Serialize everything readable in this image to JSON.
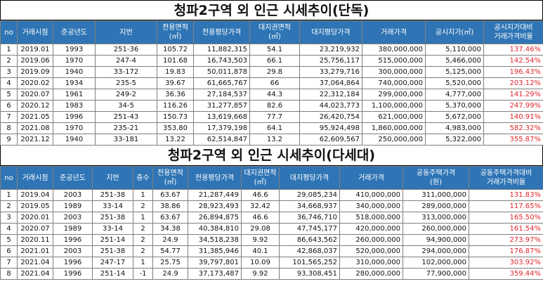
{
  "section1": {
    "title": "청파2구역 외 인근 시세추이(단독)",
    "headers": [
      "no",
      "거래시점",
      "준공년도",
      "지번",
      "전용면적\n(㎡)",
      "전용평당가격",
      "대지권면적\n(㎡)",
      "대지평당가격",
      "거래가격",
      "공시지가(㎡)",
      "공시지가대비\n거래가격비율"
    ],
    "rows": [
      [
        "1",
        "2019.01",
        "1993",
        "251-36",
        "105.72",
        "11,882,315",
        "54.1",
        "23,219,932",
        "380,000,000",
        "5,110,000",
        "137.46%"
      ],
      [
        "2",
        "2019.06",
        "1970",
        "247-4",
        "101.68",
        "16,743,503",
        "66.1",
        "25,756,117",
        "515,000,000",
        "5,466,000",
        "142.54%"
      ],
      [
        "3",
        "2019.09",
        "1940",
        "33-172",
        "19.83",
        "50,011,878",
        "29.8",
        "33,279,716",
        "300,000,000",
        "5,125,000",
        "196.43%"
      ],
      [
        "4",
        "2020.02",
        "1934",
        "235-5",
        "39.67",
        "61,665,767",
        "66",
        "37,064,864",
        "740,000,000",
        "5,520,000",
        "203.12%"
      ],
      [
        "5",
        "2020.07",
        "1961",
        "249-2",
        "36.36",
        "27,184,537",
        "44.3",
        "22,312,184",
        "299,000,000",
        "4,777,000",
        "141.29%"
      ],
      [
        "6",
        "2020.12",
        "1983",
        "34-5",
        "116.26",
        "31,277,857",
        "82.6",
        "44,023,773",
        "1,100,000,000",
        "5,370,000",
        "247.99%"
      ],
      [
        "7",
        "2021.05",
        "1996",
        "251-43",
        "150.73",
        "13,619,668",
        "77.7",
        "26,420,754",
        "621,000,000",
        "5,672,000",
        "140.91%"
      ],
      [
        "8",
        "2021.08",
        "1970",
        "235-21",
        "353.80",
        "17,379,198",
        "64.1",
        "95,924,498",
        "1,860,000,000",
        "4,983,000",
        "582.32%"
      ],
      [
        "9",
        "2021.12",
        "1940",
        "33-181",
        "13.22",
        "62,514,847",
        "13.2",
        "62,609,567",
        "250,000,000",
        "5,322,000",
        "355.87%"
      ]
    ]
  },
  "section2": {
    "title": "청파2구역 외 인근 시세추이(다세대)",
    "headers": [
      "no",
      "거래시점",
      "준공년도",
      "지번",
      "층수",
      "전용면적\n(㎡)",
      "전용평당가격",
      "대지권면적\n(㎡)",
      "대지평당가격",
      "거래가격",
      "공동주택가격\n(원)",
      "공동주택가격대비\n거래가격비율"
    ],
    "rows": [
      [
        "1",
        "2019.04",
        "2003",
        "251-38",
        "1",
        "63.67",
        "21,287,449",
        "46.6",
        "29,085,234",
        "410,000,000",
        "311,000,000",
        "131.83%"
      ],
      [
        "2",
        "2019.05",
        "1989",
        "33-14",
        "2",
        "38.86",
        "28,923,493",
        "32.42",
        "34,668,937",
        "340,000,000",
        "289,000,000",
        "117.65%"
      ],
      [
        "3",
        "2020.01",
        "2003",
        "251-38",
        "1",
        "63.67",
        "26,894,875",
        "46.6",
        "36,746,710",
        "518,000,000",
        "313,000,000",
        "165.50%"
      ],
      [
        "4",
        "2020.07",
        "1989",
        "33-14",
        "2",
        "34.38",
        "40,384,810",
        "29.08",
        "47,745,177",
        "420,000,000",
        "260,000,000",
        "161.54%"
      ],
      [
        "5",
        "2020.11",
        "1996",
        "251-14",
        "2",
        "24.9",
        "34,518,238",
        "9.92",
        "86,643,562",
        "260,000,000",
        "94,900,000",
        "273.97%"
      ],
      [
        "6",
        "2021.01",
        "2003",
        "251-38",
        "2",
        "54.77",
        "31,385,946",
        "40.1",
        "42,868,037",
        "520,000,000",
        "294,000,000",
        "176.87%"
      ],
      [
        "7",
        "2021.04",
        "1996",
        "247-17",
        "1",
        "25.75",
        "39,797,801",
        "10.09",
        "101,565,252",
        "310,000,000",
        "102,000,000",
        "303.92%"
      ],
      [
        "8",
        "2021.04",
        "1996",
        "251-14",
        "-1",
        "24.9",
        "37,173,487",
        "9.92",
        "93,308,451",
        "280,000,000",
        "77,900,000",
        "359.44%"
      ]
    ]
  }
}
